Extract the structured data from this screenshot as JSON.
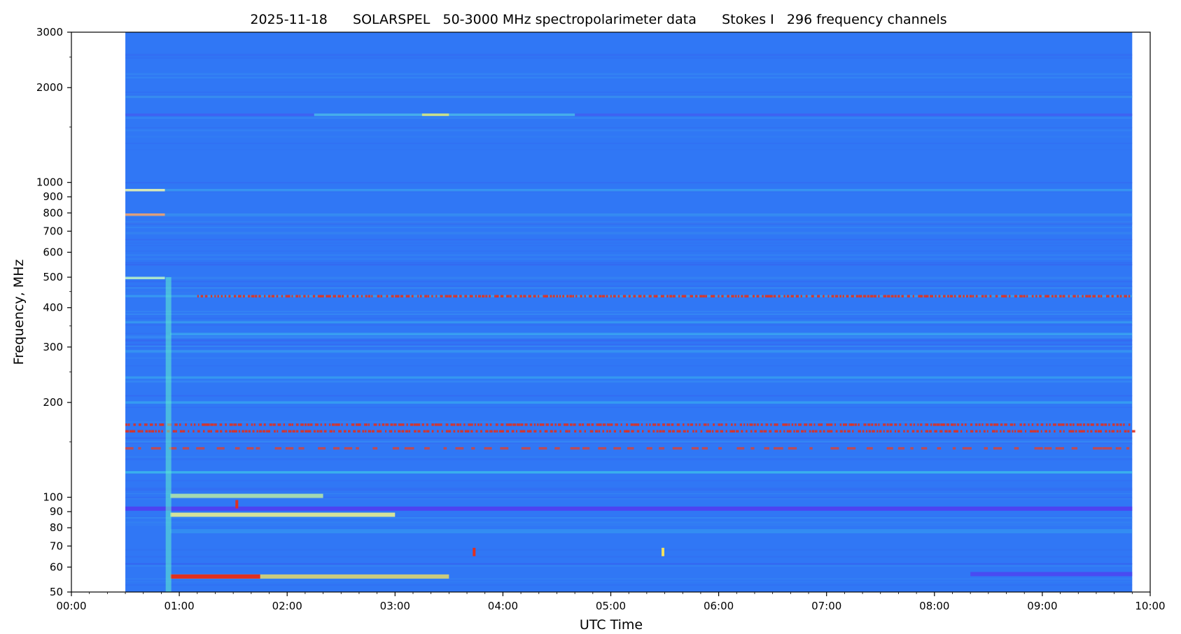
{
  "chart_data": {
    "type": "heatmap",
    "title": "2025-11-18      SOLARSPEL   50-3000 MHz spectropolarimeter data      Stokes I   296 frequency channels",
    "xlabel": "UTC Time",
    "ylabel": "Frequency, MHz",
    "x_scale": "time",
    "y_scale": "log",
    "xlim": [
      "00:00",
      "10:00"
    ],
    "ylim": [
      50,
      3000
    ],
    "data_time_range": [
      "00:30",
      "09:50"
    ],
    "x_ticks": [
      "00:00",
      "01:00",
      "02:00",
      "03:00",
      "04:00",
      "05:00",
      "06:00",
      "07:00",
      "08:00",
      "09:00",
      "10:00"
    ],
    "y_ticks": [
      {
        "value": 50,
        "label": "50"
      },
      {
        "value": 60,
        "label": "60"
      },
      {
        "value": 70,
        "label": "70"
      },
      {
        "value": 80,
        "label": "80"
      },
      {
        "value": 90,
        "label": "90"
      },
      {
        "value": 100,
        "label": "100"
      },
      {
        "value": 200,
        "label": "200"
      },
      {
        "value": 300,
        "label": "300"
      },
      {
        "value": 400,
        "label": "400"
      },
      {
        "value": 500,
        "label": "500"
      },
      {
        "value": 600,
        "label": "600"
      },
      {
        "value": 700,
        "label": "700"
      },
      {
        "value": 800,
        "label": "800"
      },
      {
        "value": 900,
        "label": "900"
      },
      {
        "value": 1000,
        "label": "1000"
      },
      {
        "value": 2000,
        "label": "2000"
      },
      {
        "value": 3000,
        "label": "3000"
      }
    ],
    "y_minor_ticks": [
      150,
      250,
      350,
      450,
      1500,
      2500
    ],
    "colormap": "rainbow",
    "background_color": "#3077f5",
    "grid": false,
    "legend": "none",
    "bands": [
      {
        "freq": 1870,
        "start": "00:30",
        "end": "09:50",
        "color": "#3aa8ee",
        "intensity": 0.5
      },
      {
        "freq": 1640,
        "start": "00:30",
        "end": "09:50",
        "color": "#4a55f0",
        "intensity": 0.6
      },
      {
        "freq": 1640,
        "start": "02:15",
        "end": "04:40",
        "color": "#49d0e8",
        "intensity": 0.7
      },
      {
        "freq": 1640,
        "start": "03:15",
        "end": "03:30",
        "color": "#d8e880",
        "intensity": 0.9
      },
      {
        "freq": 945,
        "start": "00:30",
        "end": "09:50",
        "color": "#3aa8ee",
        "intensity": 0.6
      },
      {
        "freq": 945,
        "start": "00:30",
        "end": "00:52",
        "color": "#e8f2b0",
        "intensity": 0.9
      },
      {
        "freq": 790,
        "start": "00:30",
        "end": "09:50",
        "color": "#3a9fee",
        "intensity": 0.5
      },
      {
        "freq": 790,
        "start": "00:30",
        "end": "00:52",
        "color": "#f0a070",
        "intensity": 0.9
      },
      {
        "freq": 690,
        "start": "00:30",
        "end": "09:50",
        "color": "#3a90ee",
        "intensity": 0.4
      },
      {
        "freq": 497,
        "start": "00:30",
        "end": "00:52",
        "color": "#b8f0c8",
        "intensity": 0.9
      },
      {
        "freq": 497,
        "start": "00:52",
        "end": "09:50",
        "color": "#3a8ff0",
        "intensity": 0.4
      },
      {
        "freq": 435,
        "start": "00:30",
        "end": "09:50",
        "color": "#3ab8f0",
        "intensity": 0.5
      },
      {
        "freq": 435,
        "start": "01:10",
        "end": "09:50",
        "color": "#e03020",
        "intensity": 0.9,
        "dashed": true
      },
      {
        "freq": 360,
        "start": "00:30",
        "end": "09:50",
        "color": "#39b4ee",
        "intensity": 0.5
      },
      {
        "freq": 330,
        "start": "00:55",
        "end": "09:50",
        "color": "#40c8f0",
        "intensity": 0.5
      },
      {
        "freq": 290,
        "start": "00:30",
        "end": "09:50",
        "color": "#3ab0ee",
        "intensity": 0.4
      },
      {
        "freq": 240,
        "start": "00:30",
        "end": "09:50",
        "color": "#3ab8ee",
        "intensity": 0.5
      },
      {
        "freq": 200,
        "start": "00:30",
        "end": "09:50",
        "color": "#3ac0ee",
        "intensity": 0.5
      },
      {
        "freq": 170,
        "start": "00:30",
        "end": "09:50",
        "color": "#e03020",
        "intensity": 0.9,
        "dashed": true
      },
      {
        "freq": 162,
        "start": "00:30",
        "end": "09:50",
        "color": "#e03020",
        "intensity": 0.9,
        "dashed": true
      },
      {
        "freq": 143,
        "start": "00:30",
        "end": "09:50",
        "color": "#e04030",
        "intensity": 0.8,
        "dashed": true,
        "sparse": true
      },
      {
        "freq": 120,
        "start": "00:30",
        "end": "09:50",
        "color": "#40d0e8",
        "intensity": 0.6
      },
      {
        "freq": 101,
        "start": "00:55",
        "end": "02:20",
        "color": "#c0f0a0",
        "intensity": 0.8
      },
      {
        "freq": 92,
        "start": "00:30",
        "end": "09:50",
        "color": "#5a2ef0",
        "intensity": 0.7
      },
      {
        "freq": 88,
        "start": "00:55",
        "end": "03:00",
        "color": "#e8f090",
        "intensity": 0.9
      },
      {
        "freq": 78,
        "start": "00:55",
        "end": "09:50",
        "color": "#3ab0ee",
        "intensity": 0.4
      },
      {
        "freq": 56,
        "start": "00:55",
        "end": "03:30",
        "color": "#f0e060",
        "intensity": 0.8
      },
      {
        "freq": 56,
        "start": "00:55",
        "end": "01:45",
        "color": "#e03020",
        "intensity": 1.0
      },
      {
        "freq": 57,
        "start": "08:20",
        "end": "09:50",
        "color": "#5a2ef0",
        "intensity": 0.6
      }
    ],
    "spots": [
      {
        "time": "01:32",
        "freq": 95,
        "color": "#e03020"
      },
      {
        "time": "03:44",
        "freq": 67,
        "color": "#e03020"
      },
      {
        "time": "05:29",
        "freq": 67,
        "color": "#f0e060"
      }
    ],
    "vertical_features": [
      {
        "time": "00:54",
        "freq_min": 50,
        "freq_max": 500,
        "color": "#60f0d0"
      }
    ]
  }
}
